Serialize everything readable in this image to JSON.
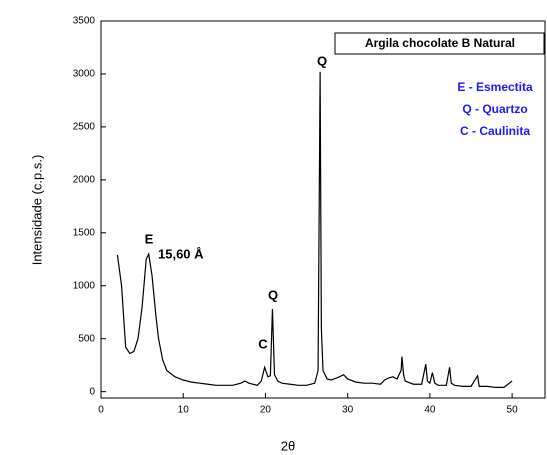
{
  "chart_data": {
    "type": "line",
    "title": "Argila chocolate B Natural",
    "x_label": "2θ",
    "y_label": "Intensidade (c.p.s.)",
    "xlim": [
      0,
      54
    ],
    "xticks": [
      0,
      10,
      20,
      30,
      40,
      50
    ],
    "ylim": [
      -60,
      3500
    ],
    "yticks": [
      0,
      500,
      1000,
      1500,
      2000,
      2500,
      3000,
      3500
    ],
    "annotations": [
      "E",
      "15,60 Å",
      "C",
      "Q",
      "Q"
    ],
    "legend_texts": [
      "E - Esmectita",
      "Q - Quartzo",
      "C - Caulinita"
    ],
    "series": [
      {
        "color": "#000000",
        "x": [
          2,
          2.5,
          3,
          3.5,
          4,
          4.5,
          5,
          5.5,
          5.8,
          6.2,
          6.7,
          7,
          7.5,
          8,
          9,
          10,
          11,
          12,
          13,
          14,
          15,
          16,
          17,
          17.5,
          18,
          19,
          19.5,
          19.9,
          20.3,
          20.6,
          20.85,
          21.1,
          21.5,
          22,
          23,
          24,
          25,
          26,
          26.4,
          26.65,
          26.8,
          27,
          27.5,
          28,
          29,
          29.5,
          30,
          31,
          32,
          33,
          34,
          34.5,
          35,
          35.5,
          36,
          36.5,
          36.6,
          36.8,
          37,
          38,
          39,
          39.5,
          39.7,
          40,
          40.3,
          40.6,
          41,
          42,
          42.4,
          42.6,
          43,
          44,
          45,
          45.8,
          46,
          47,
          48,
          49,
          50
        ],
        "values": [
          1290,
          1000,
          420,
          360,
          380,
          500,
          800,
          1250,
          1300,
          1100,
          700,
          500,
          300,
          200,
          140,
          110,
          90,
          80,
          70,
          60,
          60,
          60,
          80,
          100,
          80,
          60,
          100,
          230,
          140,
          150,
          780,
          160,
          100,
          80,
          70,
          60,
          60,
          80,
          200,
          3020,
          600,
          200,
          120,
          110,
          140,
          160,
          120,
          90,
          80,
          80,
          70,
          110,
          130,
          140,
          120,
          200,
          330,
          160,
          100,
          70,
          70,
          260,
          100,
          80,
          180,
          80,
          60,
          60,
          230,
          80,
          60,
          50,
          50,
          150,
          50,
          50,
          40,
          40,
          100
        ]
      }
    ]
  }
}
